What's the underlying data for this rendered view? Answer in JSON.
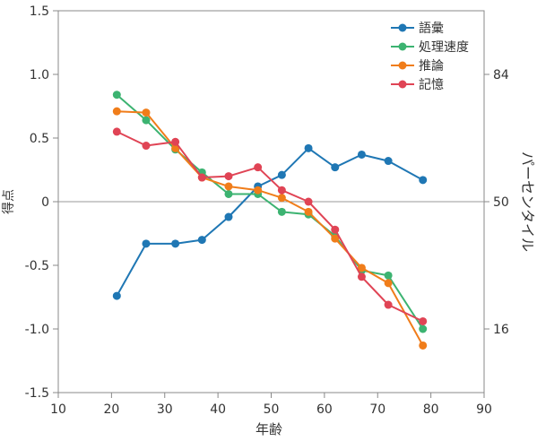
{
  "chart_data": {
    "type": "line",
    "xlabel": "年齢",
    "ylabel": "得点",
    "y2label": "パーセンタイル",
    "xlim": [
      10,
      90
    ],
    "ylim": [
      -1.5,
      1.5
    ],
    "x_ticks": [
      "10",
      "20",
      "30",
      "40",
      "50",
      "60",
      "70",
      "80",
      "90"
    ],
    "y_ticks": [
      "1.5",
      "1.0",
      "0.5",
      "0",
      "-0.5",
      "-1.0",
      "-1.5"
    ],
    "y_tick_values": [
      1.5,
      1.0,
      0.5,
      0,
      -0.5,
      -1.0,
      -1.5
    ],
    "y2_ticks": [
      {
        "label": "84",
        "score": 1.0
      },
      {
        "label": "50",
        "score": 0
      },
      {
        "label": "16",
        "score": -1.0
      }
    ],
    "reference_line": 0,
    "legend_position": "top-right",
    "series": [
      {
        "name": "語彙",
        "color": "#1f77b4",
        "x": [
          21,
          26.5,
          32,
          37,
          42,
          47.5,
          52,
          57,
          62,
          67,
          72,
          78.5
        ],
        "y": [
          -0.74,
          -0.33,
          -0.33,
          -0.3,
          -0.12,
          0.12,
          0.21,
          0.42,
          0.27,
          0.37,
          0.32,
          0.17
        ]
      },
      {
        "name": "処理速度",
        "color": "#3cb371",
        "x": [
          21,
          26.5,
          32,
          37,
          42,
          47.5,
          52,
          57,
          62,
          67,
          72,
          78.5
        ],
        "y": [
          0.84,
          0.64,
          0.41,
          0.23,
          0.06,
          0.06,
          -0.08,
          -0.1,
          -0.27,
          -0.54,
          -0.58,
          -1.0
        ]
      },
      {
        "name": "推論",
        "color": "#f07d1a",
        "x": [
          21,
          26.5,
          32,
          37,
          42,
          47.5,
          52,
          57,
          62,
          67,
          72,
          78.5
        ],
        "y": [
          0.71,
          0.7,
          0.42,
          0.19,
          0.12,
          0.09,
          0.03,
          -0.08,
          -0.29,
          -0.52,
          -0.64,
          -1.13
        ]
      },
      {
        "name": "記憶",
        "color": "#e04455",
        "x": [
          21,
          26.5,
          32,
          37,
          42,
          47.5,
          52,
          57,
          62,
          67,
          72,
          78.5
        ],
        "y": [
          0.55,
          0.44,
          0.47,
          0.19,
          0.2,
          0.27,
          0.09,
          0.0,
          -0.22,
          -0.59,
          -0.81,
          -0.94
        ]
      }
    ]
  }
}
